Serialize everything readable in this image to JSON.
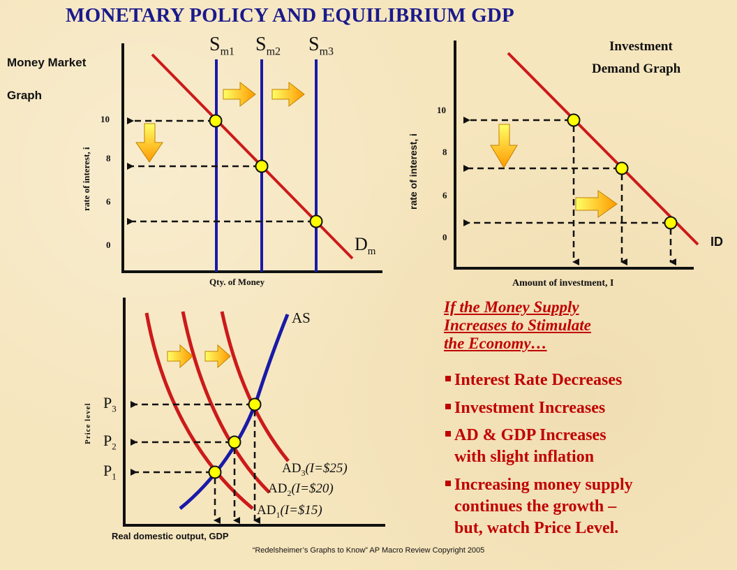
{
  "title": "MONETARY POLICY AND EQUILIBRIUM GDP",
  "money_market": {
    "label_line1": "Money Market",
    "label_line2": "Graph",
    "supply_labels": [
      {
        "base": "S",
        "sub": "m1"
      },
      {
        "base": "S",
        "sub": "m2"
      },
      {
        "base": "S",
        "sub": "m3"
      }
    ],
    "demand_label": {
      "base": "D",
      "sub": "m"
    },
    "y_ticks": [
      "10",
      "8",
      "6",
      "0"
    ],
    "y_axis_label": "rate of interest, i",
    "x_axis_label": "Qty. of Money"
  },
  "investment": {
    "label_line1": "Investment",
    "label_line2": "Demand Graph",
    "y_ticks": [
      "10",
      "8",
      "6",
      "0"
    ],
    "y_axis_label": "rate of interest, i",
    "x_axis_label": "Amount of investment, I",
    "curve_label": "ID"
  },
  "ad_as": {
    "as_label": "AS",
    "y_axis_label": "Price level",
    "x_axis_label": "Real domestic output, GDP",
    "price_labels": [
      {
        "base": "P",
        "sub": "3"
      },
      {
        "base": "P",
        "sub": "2"
      },
      {
        "base": "P",
        "sub": "1"
      }
    ],
    "ad_labels": [
      {
        "base": "AD",
        "sub": "3",
        "rest": "(I=$25)"
      },
      {
        "base": "AD",
        "sub": "2",
        "rest": "(I=$20)"
      },
      {
        "base": "AD",
        "sub": "1",
        "rest": "(I=$15)"
      }
    ]
  },
  "text_panel": {
    "heading_lines": [
      "If the Money Supply",
      "Increases to Stimulate",
      "the Economy…"
    ],
    "bullets": [
      {
        "lines": [
          "Interest Rate Decreases"
        ]
      },
      {
        "lines": [
          "Investment Increases"
        ]
      },
      {
        "lines": [
          "AD & GDP Increases",
          "with slight inflation"
        ]
      },
      {
        "lines": [
          "Increasing money supply",
          "continues the growth –",
          "but, watch Price Level."
        ]
      }
    ]
  },
  "footer": "“Redelsheimer’s Graphs to Know” AP Macro Review Copyright 2005",
  "colors": {
    "title": "#1a1a8c",
    "demand_curve": "#cc1a1a",
    "supply_curve": "#1a1aa8",
    "bullet_text": "#c00000",
    "point_fill": "#ffff00"
  }
}
